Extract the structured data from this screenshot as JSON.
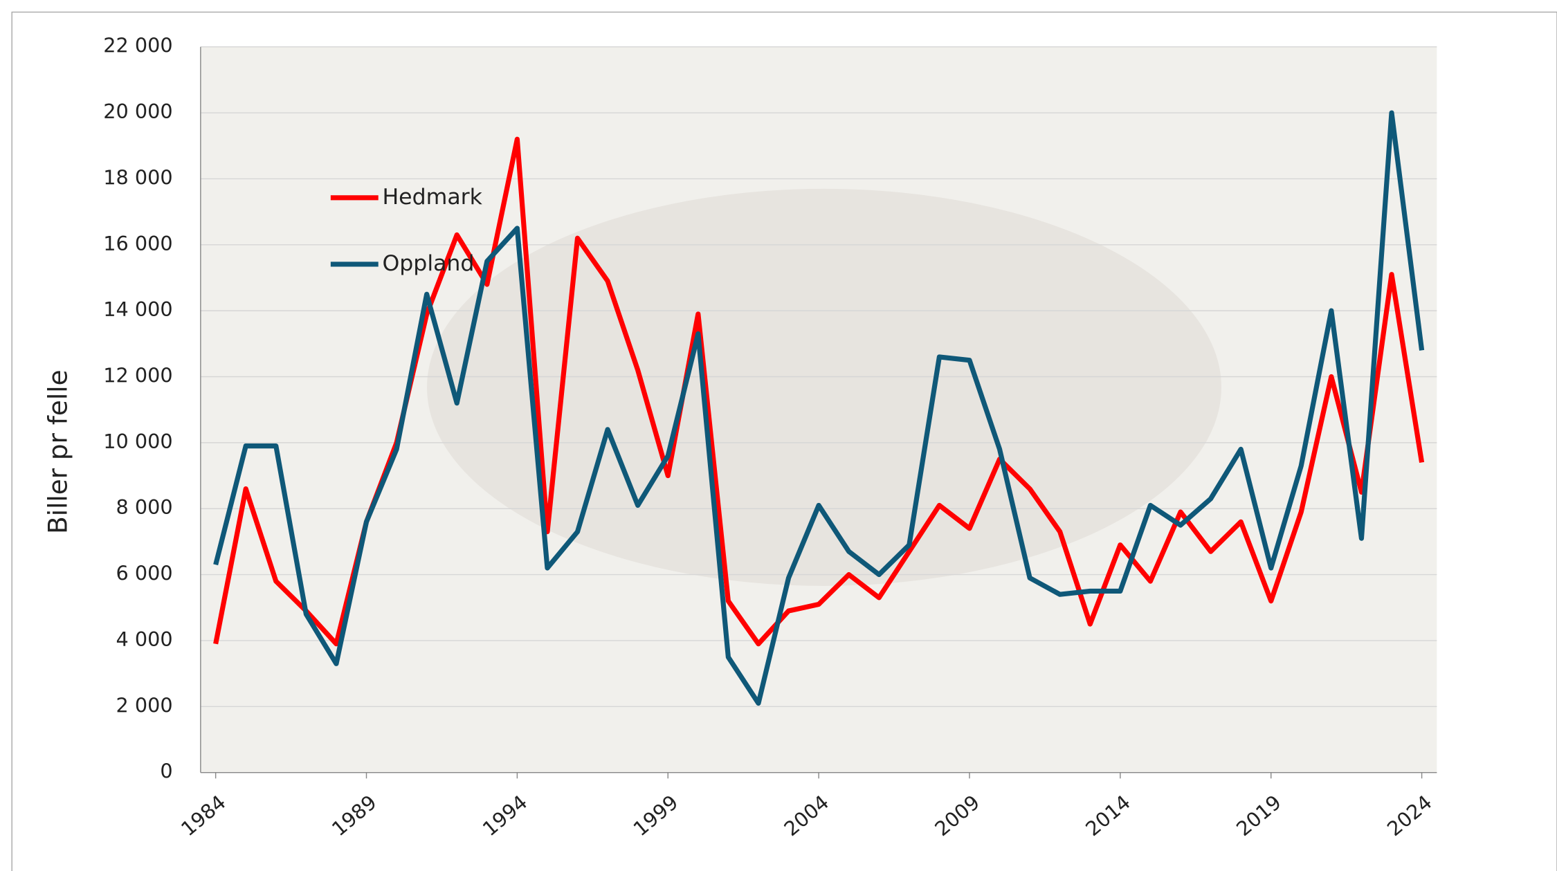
{
  "chart_data": {
    "type": "line",
    "y_label": "Biller pr felle",
    "x": [
      1984,
      1985,
      1986,
      1987,
      1988,
      1989,
      1990,
      1991,
      1992,
      1993,
      1994,
      1995,
      1996,
      1997,
      1998,
      1999,
      2000,
      2001,
      2002,
      2003,
      2004,
      2005,
      2006,
      2007,
      2008,
      2009,
      2010,
      2011,
      2012,
      2013,
      2014,
      2015,
      2016,
      2017,
      2018,
      2019,
      2020,
      2021,
      2022,
      2023,
      2024
    ],
    "xlim": [
      1983.5,
      2024.5
    ],
    "xticks": [
      1984,
      1989,
      1994,
      1999,
      2004,
      2009,
      2014,
      2019,
      2024
    ],
    "ylim": [
      0,
      22000
    ],
    "yticks": [
      0,
      {
        "value": 2000,
        "label": "2 000"
      },
      {
        "value": 4000,
        "label": "4 000"
      },
      {
        "value": 6000,
        "label": "6 000"
      },
      {
        "value": 8000,
        "label": "8 000"
      },
      {
        "value": 10000,
        "label": "10 000"
      },
      {
        "value": 12000,
        "label": "12 000"
      },
      {
        "value": 14000,
        "label": "14 000"
      },
      {
        "value": 16000,
        "label": "16 000"
      },
      {
        "value": 18000,
        "label": "18 000"
      },
      {
        "value": 20000,
        "label": "20 000"
      },
      {
        "value": 22000,
        "label": "22 000"
      }
    ],
    "grid": true,
    "legend": "upper left",
    "series": [
      {
        "name": "Hedmark",
        "color": "#ff0000",
        "values": [
          3900,
          8600,
          5800,
          4900,
          3900,
          7600,
          10000,
          13900,
          16300,
          14800,
          19200,
          7300,
          16200,
          14900,
          12200,
          9000,
          13900,
          5200,
          3900,
          4900,
          5100,
          6000,
          5300,
          6700,
          8100,
          7400,
          9500,
          8600,
          7300,
          4500,
          6900,
          5800,
          7900,
          6700,
          7600,
          5200,
          7900,
          12000,
          8500,
          15100,
          9400
        ]
      },
      {
        "name": "Oppland",
        "color": "#0f5878",
        "values": [
          6300,
          9900,
          9900,
          4800,
          3300,
          7600,
          9800,
          14500,
          11200,
          15500,
          16500,
          6200,
          7300,
          10400,
          8100,
          9600,
          13300,
          3500,
          2100,
          5900,
          8100,
          6700,
          6000,
          6900,
          12600,
          12500,
          9800,
          5900,
          5400,
          5500,
          5500,
          8100,
          7500,
          8300,
          9800,
          6200,
          9300,
          14000,
          7100,
          20000,
          12800
        ]
      }
    ]
  }
}
